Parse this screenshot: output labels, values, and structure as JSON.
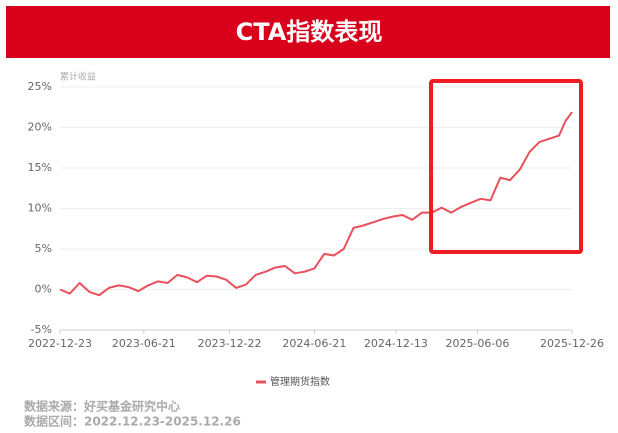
{
  "chart_data": {
    "type": "line",
    "title": "CTA指数表现",
    "y_label": "累计收益",
    "series": [
      {
        "name": "管理期货指数",
        "color": "#e8505b",
        "x": [
          "2022-12-23",
          "2023-01-13",
          "2023-02-03",
          "2023-02-24",
          "2023-03-17",
          "2023-04-07",
          "2023-04-28",
          "2023-05-19",
          "2023-06-09",
          "2023-06-30",
          "2023-07-21",
          "2023-08-11",
          "2023-09-01",
          "2023-09-22",
          "2023-10-13",
          "2023-11-03",
          "2023-11-24",
          "2023-12-15",
          "2024-01-05",
          "2024-01-26",
          "2024-02-16",
          "2024-03-08",
          "2024-03-29",
          "2024-04-19",
          "2024-05-10",
          "2024-05-31",
          "2024-06-21",
          "2024-07-12",
          "2024-08-02",
          "2024-08-23",
          "2024-09-13",
          "2024-10-04",
          "2024-10-25",
          "2024-11-15",
          "2024-12-06",
          "2024-12-27",
          "2025-01-17",
          "2025-02-07",
          "2025-02-28",
          "2025-03-21",
          "2025-04-11",
          "2025-05-02",
          "2025-05-23",
          "2025-06-13",
          "2025-07-04",
          "2025-07-25",
          "2025-08-15",
          "2025-09-05",
          "2025-09-26",
          "2025-10-17",
          "2025-11-07",
          "2025-11-28",
          "2025-12-12",
          "2025-12-26"
        ],
        "values": [
          0,
          -0.5,
          0.8,
          -0.3,
          -0.7,
          0.2,
          0.5,
          0.3,
          -0.2,
          0.5,
          1.0,
          0.8,
          1.8,
          1.5,
          0.9,
          1.7,
          1.6,
          1.2,
          0.2,
          0.6,
          1.8,
          2.2,
          2.7,
          2.9,
          2.0,
          2.2,
          2.6,
          4.4,
          4.2,
          5.0,
          7.6,
          7.9,
          8.3,
          8.7,
          9.0,
          9.2,
          8.6,
          9.5,
          9.5,
          10.1,
          9.5,
          10.2,
          10.7,
          11.2,
          11.0,
          13.8,
          13.5,
          14.8,
          17.0,
          18.2,
          18.6,
          19.0,
          20.8,
          21.9
        ]
      }
    ],
    "xlim": [
      "2022-12-23",
      "2025-12-26"
    ],
    "xticks": [
      "2022-12-23",
      "2023-06-21",
      "2023-12-22",
      "2024-06-21",
      "2024-12-13",
      "2025-06-06",
      "2025-12-26"
    ],
    "ylim": [
      -5,
      25
    ],
    "yticks": [
      {
        "value": -5,
        "label": "-5%"
      },
      {
        "value": 0,
        "label": "0%"
      },
      {
        "value": 5,
        "label": "5%"
      },
      {
        "value": 10,
        "label": "10%"
      },
      {
        "value": 15,
        "label": "15%"
      },
      {
        "value": 20,
        "label": "20%"
      },
      {
        "value": 25,
        "label": "25%"
      }
    ],
    "grid": true
  },
  "footer": {
    "source": "数据来源：好买基金研究中心",
    "period": "数据区间：2022.12.23-2025.12.26"
  }
}
